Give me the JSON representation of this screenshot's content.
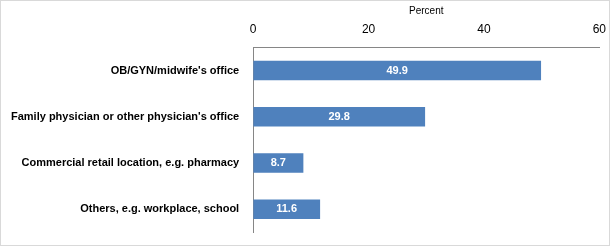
{
  "chart_data": {
    "type": "bar",
    "orientation": "horizontal",
    "categories": [
      "OB/GYN/midwife's office",
      "Family physician or other physician's office",
      "Commercial retail location, e.g. pharmacy",
      "Others, e.g. workplace, school"
    ],
    "values": [
      49.9,
      29.8,
      8.7,
      11.6
    ],
    "color": "#4f81bd",
    "x_label": "Percent",
    "xlim": [
      0,
      60
    ],
    "xticks": [
      0,
      20,
      40,
      60
    ],
    "grid": false,
    "data_labels": true
  }
}
